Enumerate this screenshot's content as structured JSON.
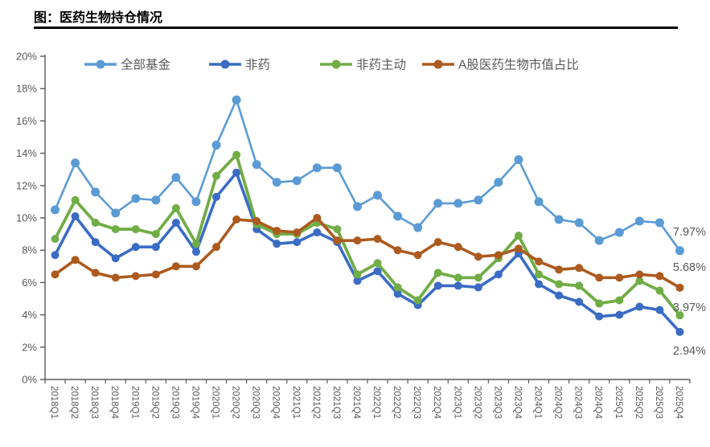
{
  "page": {
    "title": "图：医药生物持仓情况"
  },
  "chart_data": {
    "type": "line",
    "title": "图：医药生物持仓情况",
    "categories": [
      "2018Q1",
      "2018Q2",
      "2018Q3",
      "2018Q4",
      "2019Q1",
      "2019Q2",
      "2019Q3",
      "2019Q4",
      "2020Q1",
      "2020Q2",
      "2020Q3",
      "2020Q4",
      "2021Q1",
      "2021Q2",
      "2021Q3",
      "2021Q4",
      "2022Q1",
      "2022Q2",
      "2022Q3",
      "2022Q4",
      "2023Q1",
      "2023Q2",
      "2023Q3",
      "2023Q4",
      "2024Q1",
      "2024Q2",
      "2024Q3",
      "2024Q4",
      "2025Q1",
      "2025Q2",
      "2025Q3",
      "2025Q4"
    ],
    "series": [
      {
        "name": "全部基金",
        "color": "#5B9BD5",
        "values": [
          10.5,
          13.4,
          11.6,
          10.3,
          11.2,
          11.1,
          12.5,
          11.0,
          14.5,
          17.3,
          13.3,
          12.2,
          12.3,
          13.1,
          13.1,
          10.7,
          11.4,
          10.1,
          9.4,
          10.9,
          10.9,
          11.1,
          12.2,
          13.6,
          11.0,
          9.9,
          9.7,
          8.6,
          9.1,
          9.8,
          9.7,
          7.97
        ]
      },
      {
        "name": "非药",
        "color": "#3A6CC4",
        "values": [
          7.7,
          10.1,
          8.5,
          7.5,
          8.2,
          8.2,
          9.7,
          7.9,
          11.3,
          12.8,
          9.3,
          8.4,
          8.5,
          9.1,
          8.5,
          6.1,
          6.7,
          5.3,
          4.6,
          5.8,
          5.8,
          5.7,
          6.5,
          7.8,
          5.9,
          5.2,
          4.8,
          3.9,
          4.0,
          4.5,
          4.3,
          2.94
        ]
      },
      {
        "name": "非药主动",
        "color": "#70AD47",
        "values": [
          8.7,
          11.1,
          9.7,
          9.3,
          9.3,
          9.0,
          10.6,
          8.4,
          12.6,
          13.9,
          9.6,
          9.0,
          9.0,
          9.7,
          9.3,
          6.5,
          7.2,
          5.7,
          4.9,
          6.6,
          6.3,
          6.3,
          7.5,
          8.9,
          6.5,
          5.9,
          5.8,
          4.7,
          4.9,
          6.1,
          5.5,
          3.97
        ]
      },
      {
        "name": "A股医药生物市值占比",
        "color": "#AC5A1F",
        "values": [
          6.5,
          7.4,
          6.6,
          6.3,
          6.4,
          6.5,
          7.0,
          7.0,
          8.2,
          9.9,
          9.8,
          9.2,
          9.1,
          10.0,
          8.6,
          8.6,
          8.7,
          8.0,
          7.7,
          8.5,
          8.2,
          7.6,
          7.7,
          8.1,
          7.3,
          6.8,
          6.9,
          6.3,
          6.3,
          6.5,
          6.4,
          5.68
        ]
      }
    ],
    "end_labels": [
      {
        "series": "全部基金",
        "text": "7.97%"
      },
      {
        "series": "A股医药生物市值占比",
        "text": "5.68%"
      },
      {
        "series": "非药主动",
        "text": "3.97%"
      },
      {
        "series": "非药",
        "text": "2.94%"
      }
    ],
    "ylim": [
      0,
      20
    ],
    "ytick_step": 2,
    "ytick_labels": [
      "0%",
      "2%",
      "4%",
      "6%",
      "8%",
      "10%",
      "12%",
      "14%",
      "16%",
      "18%",
      "20%"
    ],
    "grid": false,
    "legend_position": "top",
    "axis_color": "#595959",
    "tick_label_color": "#595959",
    "end_label_color": "#595959"
  }
}
